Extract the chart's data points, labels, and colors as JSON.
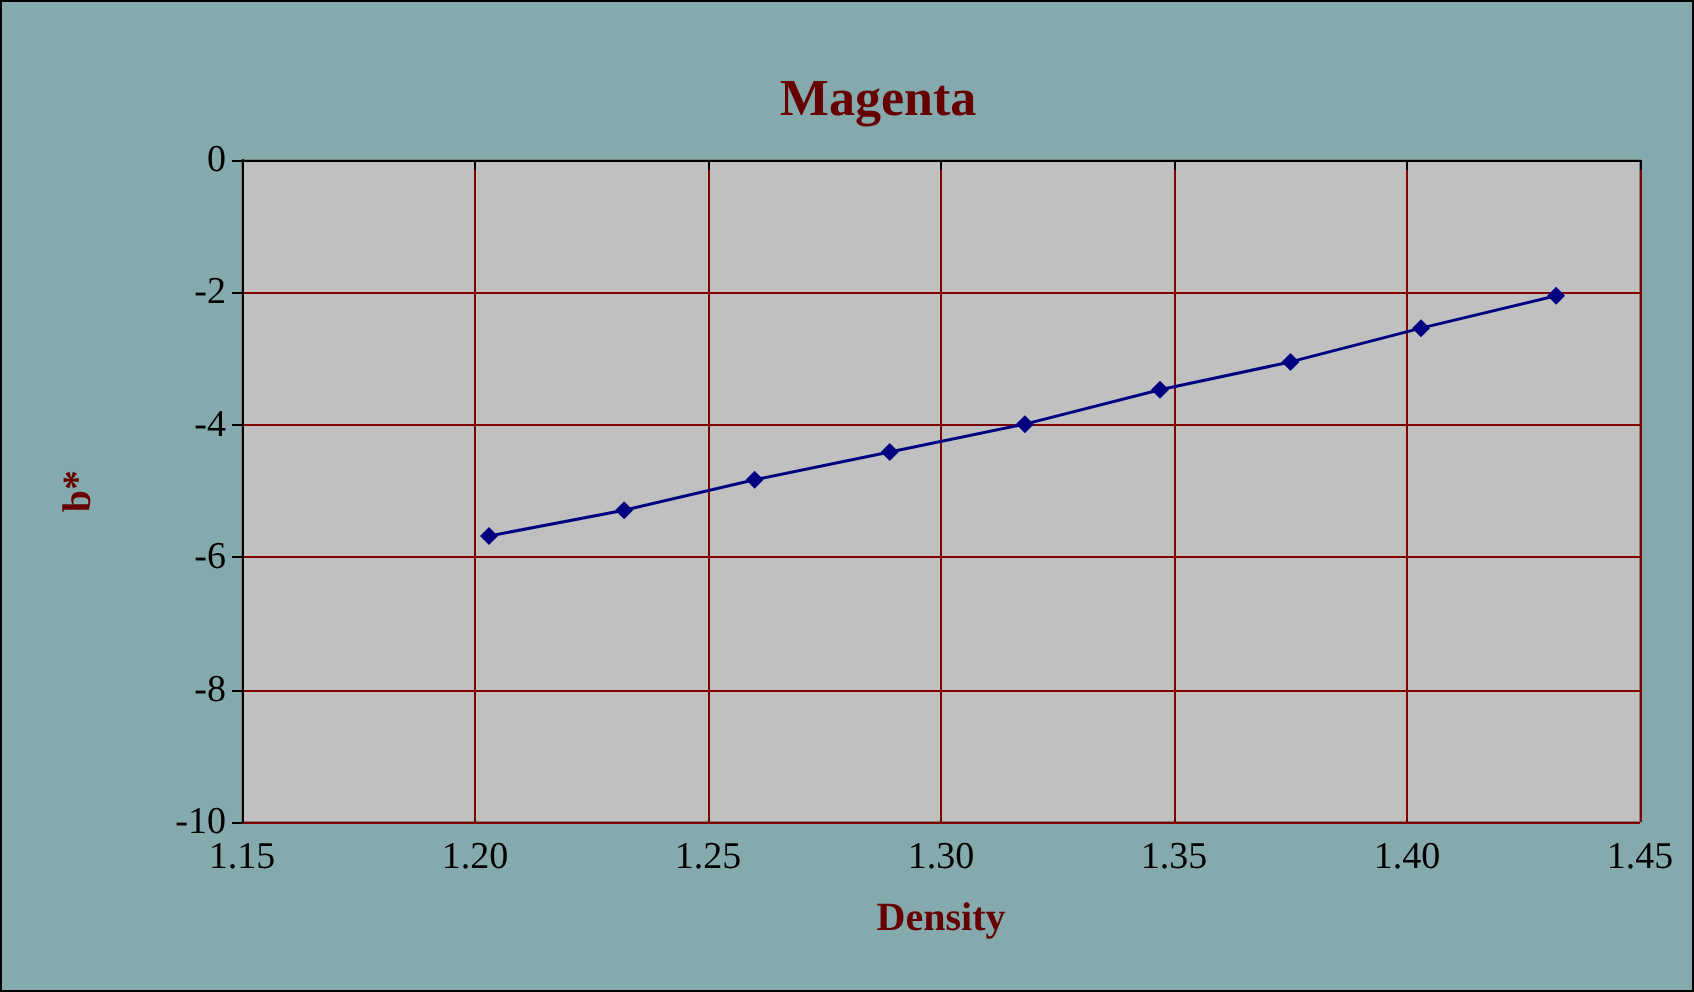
{
  "chart_data": {
    "type": "line",
    "title": "Magenta",
    "xlabel": "Density",
    "ylabel": "b*",
    "x": [
      1.203,
      1.232,
      1.26,
      1.289,
      1.318,
      1.347,
      1.375,
      1.403,
      1.432
    ],
    "series": [
      {
        "color": "#000080",
        "values": [
          -5.68,
          -5.29,
          -4.83,
          -4.41,
          -3.99,
          -3.47,
          -3.05,
          -2.54,
          -2.05
        ]
      }
    ],
    "xlim": [
      1.15,
      1.45
    ],
    "xticks": [
      {
        "value": 1.15,
        "label": "1.15"
      },
      {
        "value": 1.2,
        "label": "1.20"
      },
      {
        "value": 1.25,
        "label": "1.25"
      },
      {
        "value": 1.3,
        "label": "1.30"
      },
      {
        "value": 1.35,
        "label": "1.35"
      },
      {
        "value": 1.4,
        "label": "1.40"
      },
      {
        "value": 1.45,
        "label": "1.45"
      }
    ],
    "ylim": [
      -10,
      0
    ],
    "yticks": [
      -10,
      -8,
      -6,
      -4,
      -2,
      0
    ],
    "grid": true,
    "marker": "diamond",
    "line_style": "solid"
  }
}
